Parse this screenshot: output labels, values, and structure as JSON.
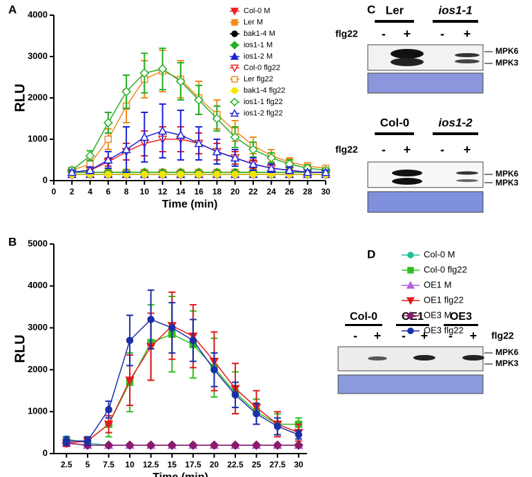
{
  "chart_data": [
    {
      "type": "line",
      "panel": "A",
      "xlabel": "Time (min)",
      "ylabel": "RLU",
      "x": [
        2,
        4,
        6,
        8,
        10,
        12,
        14,
        16,
        18,
        20,
        22,
        24,
        26,
        28,
        30
      ],
      "xlim": [
        0,
        30
      ],
      "xticks": [
        0,
        2,
        4,
        6,
        8,
        10,
        12,
        14,
        16,
        18,
        20,
        22,
        24,
        26,
        28,
        30
      ],
      "ylim": [
        0,
        4000
      ],
      "yticks": [
        0,
        1000,
        2000,
        3000,
        4000
      ],
      "series": [
        {
          "name": "Col-0 M",
          "color": "#e8211e",
          "marker": "triangle-down",
          "filled": true,
          "values": [
            150,
            150,
            150,
            150,
            150,
            150,
            150,
            150,
            150,
            150,
            150,
            150,
            150,
            150,
            150
          ]
        },
        {
          "name": "Ler M",
          "color": "#f28a1c",
          "marker": "square",
          "filled": true,
          "values": [
            200,
            200,
            200,
            200,
            200,
            200,
            200,
            200,
            200,
            200,
            200,
            200,
            200,
            200,
            200
          ]
        },
        {
          "name": "bak1-4 M",
          "color": "#000000",
          "marker": "circle",
          "filled": true,
          "values": [
            150,
            150,
            150,
            150,
            150,
            150,
            150,
            150,
            150,
            150,
            150,
            150,
            150,
            150,
            150
          ]
        },
        {
          "name": "ios1-1 M",
          "color": "#23b023",
          "marker": "diamond",
          "filled": true,
          "values": [
            200,
            200,
            200,
            200,
            200,
            200,
            200,
            200,
            200,
            200,
            200,
            200,
            200,
            200,
            200
          ]
        },
        {
          "name": "ios1-2 M",
          "color": "#1e22d6",
          "marker": "triangle-up",
          "filled": true,
          "values": [
            150,
            150,
            150,
            150,
            150,
            150,
            150,
            150,
            150,
            150,
            150,
            150,
            150,
            150,
            150
          ]
        },
        {
          "name": "Col-0 flg22",
          "color": "#e8211e",
          "marker": "triangle-down",
          "filled": false,
          "values": [
            200,
            250,
            450,
            700,
            900,
            1000,
            1000,
            900,
            700,
            550,
            400,
            300,
            250,
            200,
            200
          ],
          "errors": [
            50,
            50,
            100,
            200,
            300,
            300,
            300,
            250,
            200,
            150,
            100,
            80,
            60,
            50,
            50
          ]
        },
        {
          "name": "Ler flg22",
          "color": "#f28a1c",
          "marker": "square",
          "filled": false,
          "values": [
            250,
            400,
            1000,
            1800,
            2450,
            2650,
            2450,
            2000,
            1600,
            1200,
            850,
            600,
            450,
            350,
            300
          ],
          "errors": [
            50,
            100,
            250,
            400,
            450,
            500,
            450,
            400,
            350,
            250,
            200,
            150,
            100,
            80,
            50
          ]
        },
        {
          "name": "bak1-4 flg22",
          "color": "#f5e400",
          "marker": "circle",
          "filled": true,
          "values": [
            150,
            150,
            150,
            150,
            150,
            150,
            150,
            150,
            150,
            150,
            150,
            150,
            150,
            150,
            150
          ]
        },
        {
          "name": "ios1-1 flg22",
          "color": "#23b023",
          "marker": "diamond",
          "filled": false,
          "values": [
            250,
            600,
            1400,
            2150,
            2600,
            2700,
            2400,
            1950,
            1500,
            1050,
            750,
            550,
            400,
            300,
            250
          ],
          "errors": [
            60,
            120,
            250,
            400,
            480,
            500,
            450,
            350,
            300,
            250,
            180,
            120,
            100,
            80,
            50
          ]
        },
        {
          "name": "ios1-2 flg22",
          "color": "#1e22d6",
          "marker": "triangle-up",
          "filled": false,
          "values": [
            200,
            250,
            500,
            750,
            1050,
            1200,
            1100,
            900,
            700,
            550,
            400,
            300,
            250,
            200,
            200
          ],
          "errors": [
            50,
            80,
            200,
            550,
            600,
            650,
            600,
            400,
            300,
            200,
            150,
            100,
            80,
            50,
            50
          ]
        }
      ]
    },
    {
      "type": "line",
      "panel": "B",
      "xlabel": "Time (min)",
      "ylabel": "RLU",
      "x": [
        2.5,
        5,
        7.5,
        10,
        12.5,
        15,
        17.5,
        20,
        22.5,
        25,
        27.5,
        30
      ],
      "xlim": [
        1,
        31
      ],
      "xticks": [
        2.5,
        5,
        7.5,
        10,
        12.5,
        15,
        17.5,
        20,
        22.5,
        25,
        27.5,
        30
      ],
      "ylim": [
        0,
        5000
      ],
      "yticks": [
        0,
        1000,
        2000,
        3000,
        4000,
        5000
      ],
      "series": [
        {
          "name": "Col-0 M",
          "color": "#1fbf9a",
          "marker": "circle",
          "filled": true,
          "values": [
            350,
            250,
            200,
            200,
            200,
            200,
            200,
            200,
            200,
            200,
            200,
            200
          ]
        },
        {
          "name": "Col-0 flg22",
          "color": "#2fbf1f",
          "marker": "square",
          "filled": true,
          "values": [
            300,
            300,
            700,
            1700,
            2650,
            2850,
            2600,
            2050,
            1450,
            1000,
            700,
            700
          ],
          "errors": [
            100,
            100,
            300,
            700,
            900,
            900,
            800,
            700,
            500,
            300,
            250,
            150
          ]
        },
        {
          "name": "OE1 M",
          "color": "#b45fe0",
          "marker": "triangle-up",
          "filled": true,
          "values": [
            250,
            200,
            200,
            200,
            200,
            200,
            200,
            200,
            200,
            200,
            200,
            200
          ]
        },
        {
          "name": "OE1 flg22",
          "color": "#e31a1c",
          "marker": "triangle-down",
          "filled": true,
          "values": [
            250,
            300,
            700,
            1750,
            2550,
            3050,
            2800,
            2200,
            1550,
            1100,
            700,
            500
          ],
          "errors": [
            80,
            80,
            200,
            600,
            800,
            800,
            750,
            700,
            600,
            400,
            300,
            200
          ]
        },
        {
          "name": "OE3 M",
          "color": "#8b1a6b",
          "marker": "diamond",
          "filled": true,
          "values": [
            250,
            200,
            200,
            200,
            200,
            200,
            200,
            200,
            200,
            200,
            200,
            200
          ]
        },
        {
          "name": "OE3 flg22",
          "color": "#1a2fa8",
          "marker": "circle",
          "filled": true,
          "values": [
            300,
            300,
            1050,
            2700,
            3200,
            3000,
            2700,
            2000,
            1400,
            950,
            650,
            450
          ],
          "errors": [
            100,
            100,
            200,
            600,
            700,
            600,
            500,
            400,
            300,
            250,
            200,
            100
          ]
        }
      ]
    }
  ],
  "blots": {
    "C": {
      "panel": "C",
      "top": {
        "genotypes": [
          "Ler",
          "ios1-1"
        ],
        "treatment": "flg22",
        "lanes": [
          "-",
          "+",
          "-",
          "+"
        ],
        "bands": [
          "MPK6",
          "MPK3"
        ]
      },
      "bottom": {
        "genotypes": [
          "Col-0",
          "ios1-2"
        ],
        "treatment": "flg22",
        "lanes": [
          "-",
          "+",
          "-",
          "+"
        ],
        "bands": [
          "MPK6",
          "MPK3"
        ]
      }
    },
    "D": {
      "panel": "D",
      "genotypes": [
        "Col-0",
        "OE1",
        "OE3"
      ],
      "treatment": "flg22",
      "lanes": [
        "-",
        "+",
        "-",
        "+",
        "-",
        "+"
      ],
      "bands": [
        "MPK6",
        "MPK3"
      ]
    }
  }
}
